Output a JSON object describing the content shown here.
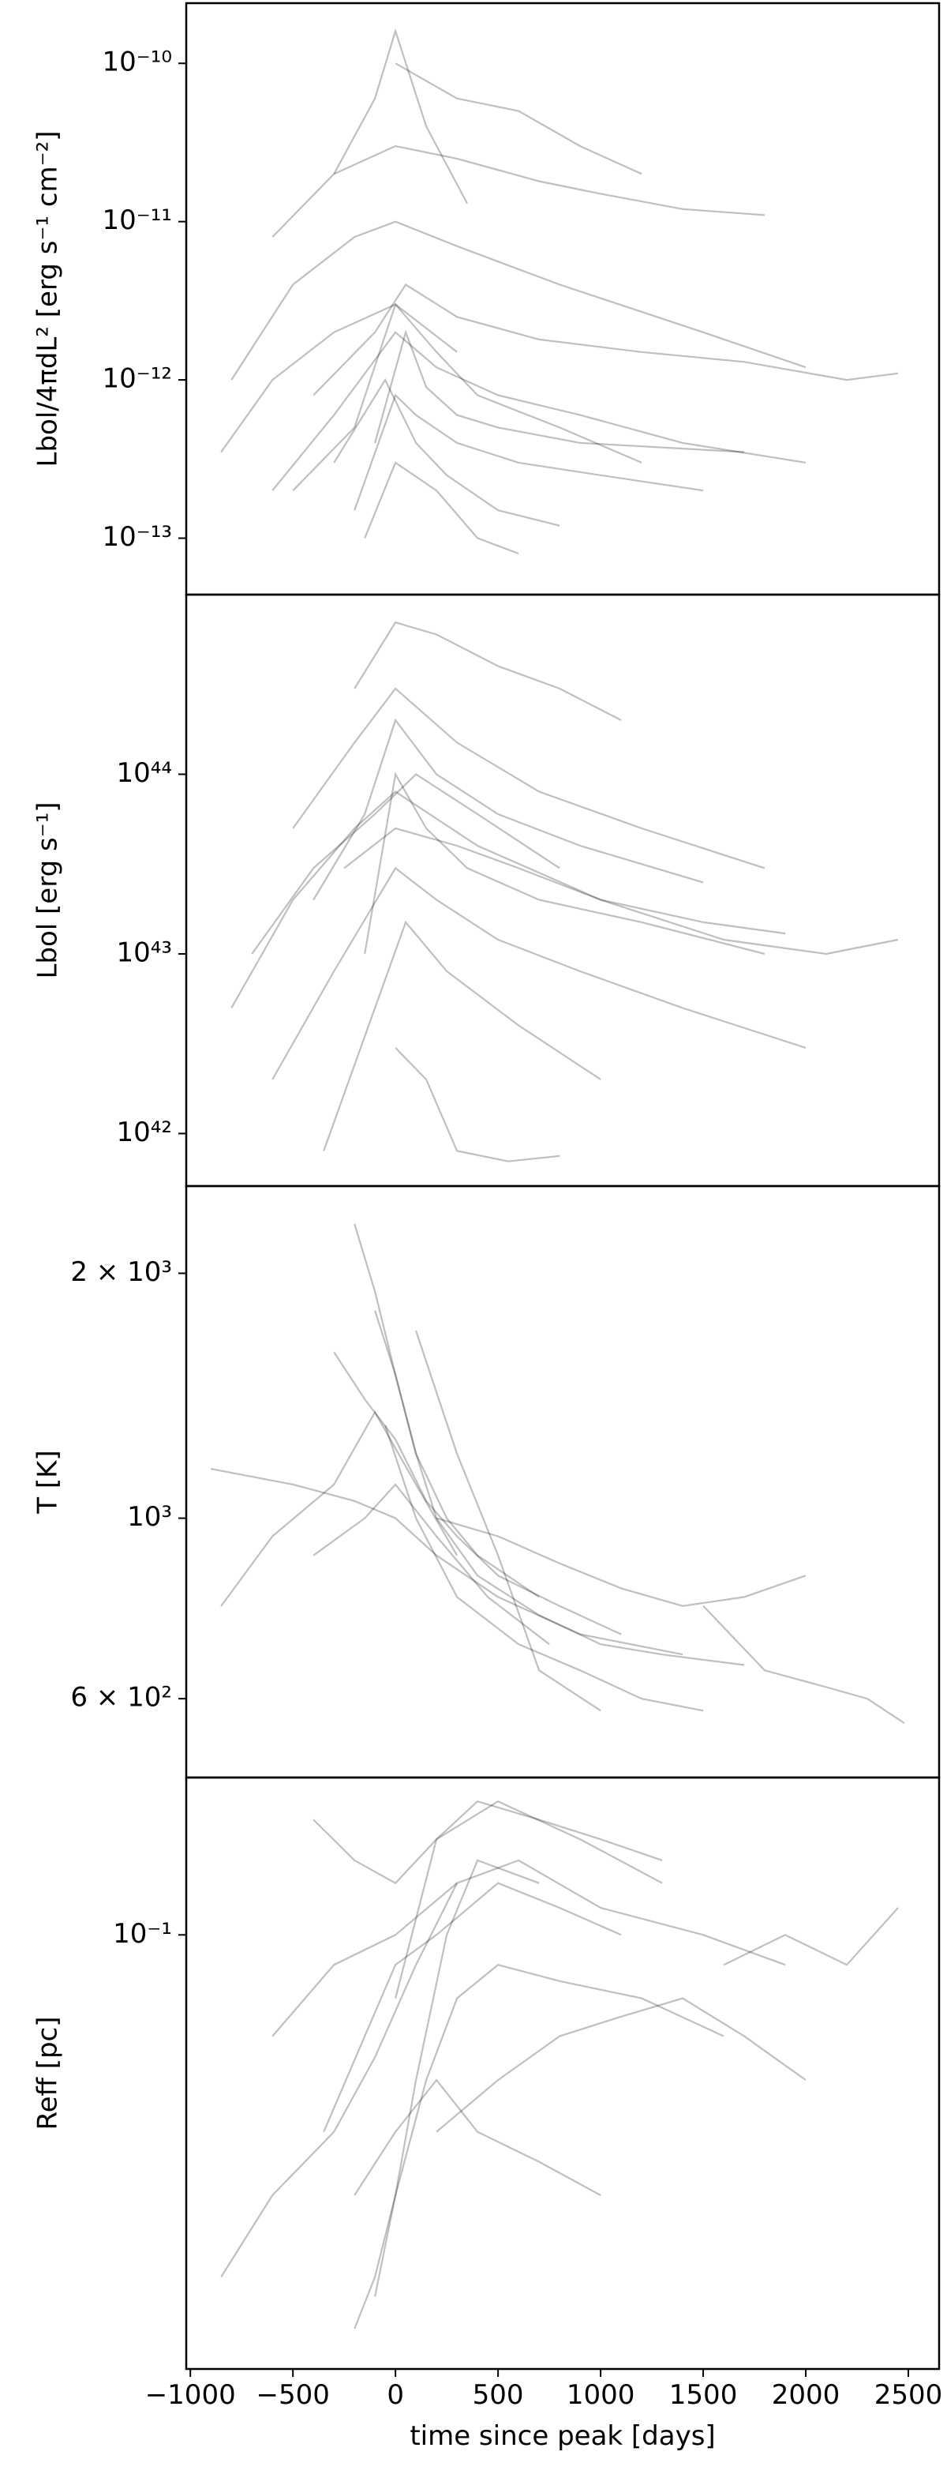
{
  "chart_data": [
    {
      "type": "line",
      "ylabel": "Lbol/4πdL² [erg s⁻¹ cm⁻²]",
      "log_y": true,
      "color": "#000000",
      "opacity": 0.25,
      "xlim": [
        -1020,
        2650
      ],
      "ylim": [
        4.4e-14,
        2.4e-10
      ],
      "yticks": [
        {
          "value": 1e-10,
          "label": "10⁻¹⁰"
        },
        {
          "value": 1e-11,
          "label": "10⁻¹¹"
        },
        {
          "value": 1e-12,
          "label": "10⁻¹²"
        },
        {
          "value": 1e-13,
          "label": "10⁻¹³"
        }
      ],
      "series": [
        {
          "x": [
            -300,
            -100,
            0,
            150,
            350
          ],
          "values": [
            2e-11,
            6e-11,
            1.6e-10,
            4e-11,
            1.3e-11
          ]
        },
        {
          "x": [
            0,
            300,
            600,
            900,
            1200
          ],
          "values": [
            1e-10,
            6e-11,
            5e-11,
            3e-11,
            2e-11
          ]
        },
        {
          "x": [
            -600,
            -300,
            0,
            300,
            700,
            1000,
            1400,
            1800
          ],
          "values": [
            8e-12,
            2e-11,
            3e-11,
            2.5e-11,
            1.8e-11,
            1.5e-11,
            1.2e-11,
            1.1e-11
          ]
        },
        {
          "x": [
            -800,
            -500,
            -200,
            0,
            300,
            800,
            1500,
            2000
          ],
          "values": [
            1e-12,
            4e-12,
            8e-12,
            1e-11,
            7e-12,
            4e-12,
            2e-12,
            1.2e-12
          ]
        },
        {
          "x": [
            -400,
            -100,
            50,
            300,
            700,
            1200,
            1700,
            2200,
            2450
          ],
          "values": [
            8e-13,
            2e-12,
            4e-12,
            2.5e-12,
            1.8e-12,
            1.5e-12,
            1.3e-12,
            1e-12,
            1.1e-12
          ]
        },
        {
          "x": [
            -600,
            -300,
            0,
            200,
            500,
            900,
            1400,
            2000
          ],
          "values": [
            2e-13,
            6e-13,
            2e-12,
            1.2e-12,
            8e-13,
            6e-13,
            4e-13,
            3e-13
          ]
        },
        {
          "x": [
            -200,
            0,
            100,
            300,
            600,
            1000,
            1500
          ],
          "values": [
            1.5e-13,
            8e-13,
            6e-13,
            4e-13,
            3e-13,
            2.5e-13,
            2e-13
          ]
        },
        {
          "x": [
            -300,
            -50,
            100,
            250,
            500,
            800
          ],
          "values": [
            3e-13,
            1e-12,
            4e-13,
            2.5e-13,
            1.5e-13,
            1.2e-13
          ]
        },
        {
          "x": [
            -150,
            0,
            200,
            400,
            600
          ],
          "values": [
            1e-13,
            3e-13,
            2e-13,
            1e-13,
            8e-14
          ]
        },
        {
          "x": [
            -500,
            -200,
            0,
            200,
            400,
            800,
            1200
          ],
          "values": [
            2e-13,
            5e-13,
            3e-12,
            1.5e-12,
            8e-13,
            5e-13,
            3e-13
          ]
        },
        {
          "x": [
            -100,
            50,
            150,
            300,
            500,
            900,
            1700
          ],
          "values": [
            4e-13,
            2e-12,
            9e-13,
            6e-13,
            5e-13,
            4e-13,
            3.5e-13
          ]
        },
        {
          "x": [
            -850,
            -600,
            -300,
            0,
            300
          ],
          "values": [
            3.5e-13,
            1e-12,
            2e-12,
            3e-12,
            1.5e-12
          ]
        }
      ]
    },
    {
      "type": "line",
      "ylabel": "Lbol [erg s⁻¹]",
      "log_y": true,
      "color": "#000000",
      "opacity": 0.25,
      "xlim": [
        -1020,
        2650
      ],
      "ylim": [
        5.1e+41,
        1e+45
      ],
      "yticks": [
        {
          "value": 1e+44,
          "label": "10⁴⁴"
        },
        {
          "value": 1e+43,
          "label": "10⁴³"
        },
        {
          "value": 1e+42,
          "label": "10⁴²"
        }
      ],
      "series": [
        {
          "x": [
            -200,
            0,
            200,
            500,
            800,
            1100
          ],
          "values": [
            3e+44,
            7e+44,
            6e+44,
            4e+44,
            3e+44,
            2e+44
          ]
        },
        {
          "x": [
            -500,
            -200,
            0,
            300,
            700,
            1200,
            1800
          ],
          "values": [
            5e+43,
            1.5e+44,
            3e+44,
            1.5e+44,
            8e+43,
            5e+43,
            3e+43
          ]
        },
        {
          "x": [
            -800,
            -500,
            -200,
            0,
            400,
            1000,
            1600,
            2100,
            2450
          ],
          "values": [
            5e+42,
            2e+43,
            5e+43,
            8e+43,
            4e+43,
            2e+43,
            1.2e+43,
            1e+43,
            1.2e+43
          ]
        },
        {
          "x": [
            -600,
            -300,
            0,
            200,
            500,
            900,
            1400,
            2000
          ],
          "values": [
            2e+42,
            8e+42,
            3e+43,
            2e+43,
            1.2e+43,
            8e+42,
            5e+42,
            3e+42
          ]
        },
        {
          "x": [
            -350,
            -100,
            50,
            250,
            600,
            1000
          ],
          "values": [
            8e+41,
            5e+42,
            1.5e+43,
            8e+42,
            4e+42,
            2e+42
          ]
        },
        {
          "x": [
            -150,
            0,
            150,
            350,
            700,
            1200,
            1800
          ],
          "values": [
            1e+43,
            1e+44,
            5e+43,
            3e+43,
            2e+43,
            1.5e+43,
            1e+43
          ]
        },
        {
          "x": [
            -400,
            -150,
            0,
            200,
            500,
            900,
            1500
          ],
          "values": [
            2e+43,
            6e+43,
            2e+44,
            1e+44,
            6e+43,
            4e+43,
            2.5e+43
          ]
        },
        {
          "x": [
            0,
            150,
            300,
            550,
            800
          ],
          "values": [
            3e+42,
            2e+42,
            8e+41,
            7e+41,
            7.5e+41
          ]
        },
        {
          "x": [
            -250,
            0,
            300,
            600,
            1000,
            1500,
            1900
          ],
          "values": [
            3e+43,
            5e+43,
            4e+43,
            3e+43,
            2e+43,
            1.5e+43,
            1.3e+43
          ]
        },
        {
          "x": [
            -700,
            -400,
            -100,
            100,
            400,
            800
          ],
          "values": [
            1e+43,
            3e+43,
            6e+43,
            1e+44,
            6e+43,
            3e+43
          ]
        }
      ]
    },
    {
      "type": "line",
      "ylabel": "T [K]",
      "log_y": true,
      "color": "#000000",
      "opacity": 0.25,
      "xlim": [
        -1020,
        2650
      ],
      "ylim": [
        480,
        2560
      ],
      "yticks": [
        {
          "value": 2000,
          "label": "2 × 10³"
        },
        {
          "value": 1000,
          "label": "10³"
        },
        {
          "value": 600,
          "label": "6 × 10²"
        }
      ],
      "series": [
        {
          "x": [
            -850,
            -600,
            -300,
            -100,
            100,
            300
          ],
          "values": [
            780,
            950,
            1100,
            1350,
            1100,
            900
          ]
        },
        {
          "x": [
            -200,
            -100,
            0,
            100,
            250,
            400,
            700
          ],
          "values": [
            2300,
            1900,
            1500,
            1200,
            1000,
            900,
            800
          ]
        },
        {
          "x": [
            -300,
            -150,
            0,
            150,
            300,
            500,
            800,
            1100
          ],
          "values": [
            1600,
            1400,
            1250,
            1050,
            950,
            850,
            780,
            720
          ]
        },
        {
          "x": [
            -900,
            -500,
            -200,
            0,
            200,
            500,
            900,
            1400
          ],
          "values": [
            1150,
            1100,
            1050,
            1000,
            900,
            800,
            720,
            680
          ]
        },
        {
          "x": [
            -100,
            0,
            100,
            200,
            400,
            700,
            1000,
            1300,
            1700
          ],
          "values": [
            1800,
            1500,
            1200,
            1000,
            850,
            760,
            700,
            680,
            660
          ]
        },
        {
          "x": [
            1500,
            1800,
            2100,
            2300,
            2480
          ],
          "values": [
            780,
            650,
            620,
            600,
            560
          ]
        },
        {
          "x": [
            -400,
            -150,
            0,
            200,
            450,
            750
          ],
          "values": [
            900,
            1000,
            1100,
            950,
            800,
            700
          ]
        },
        {
          "x": [
            200,
            500,
            800,
            1100,
            1400,
            1700,
            2000
          ],
          "values": [
            1000,
            950,
            880,
            820,
            780,
            800,
            850
          ]
        },
        {
          "x": [
            -50,
            100,
            300,
            600,
            900,
            1200,
            1500
          ],
          "values": [
            1300,
            1000,
            800,
            700,
            650,
            600,
            580
          ]
        },
        {
          "x": [
            100,
            300,
            500,
            700,
            1000
          ],
          "values": [
            1700,
            1200,
            900,
            650,
            580
          ]
        }
      ]
    },
    {
      "type": "line",
      "ylabel": "Reff [pc]",
      "log_y": true,
      "color": "#000000",
      "opacity": 0.25,
      "xlim": [
        -1020,
        2650
      ],
      "ylim": [
        0.0217,
        0.174
      ],
      "yticks": [
        {
          "value": 0.1,
          "label": "10⁻¹"
        }
      ],
      "xlabel": "time since peak [days]",
      "xticks": [
        {
          "value": -1000,
          "label": "−1000"
        },
        {
          "value": -500,
          "label": "−500"
        },
        0,
        500,
        1000,
        1500,
        2000,
        2500
      ],
      "series": [
        {
          "x": [
            -850,
            -600,
            -300,
            -100,
            100,
            300
          ],
          "values": [
            0.03,
            0.04,
            0.05,
            0.065,
            0.09,
            0.12
          ]
        },
        {
          "x": [
            -200,
            -100,
            0,
            100,
            250,
            400,
            700
          ],
          "values": [
            0.025,
            0.03,
            0.04,
            0.06,
            0.1,
            0.13,
            0.12
          ]
        },
        {
          "x": [
            -350,
            -150,
            0,
            200,
            500,
            800,
            1100
          ],
          "values": [
            0.05,
            0.07,
            0.09,
            0.1,
            0.12,
            0.11,
            0.1
          ]
        },
        {
          "x": [
            -600,
            -300,
            0,
            300,
            600,
            1000,
            1500,
            1900
          ],
          "values": [
            0.07,
            0.09,
            0.1,
            0.12,
            0.13,
            0.11,
            0.1,
            0.09
          ]
        },
        {
          "x": [
            -100,
            0,
            150,
            300,
            500,
            800,
            1200,
            1600
          ],
          "values": [
            0.028,
            0.04,
            0.06,
            0.08,
            0.09,
            0.085,
            0.08,
            0.07
          ]
        },
        {
          "x": [
            1600,
            1900,
            2200,
            2450
          ],
          "values": [
            0.09,
            0.1,
            0.09,
            0.11
          ]
        },
        {
          "x": [
            -400,
            -200,
            0,
            200,
            500,
            900,
            1300
          ],
          "values": [
            0.15,
            0.13,
            0.12,
            0.14,
            0.16,
            0.14,
            0.12
          ]
        },
        {
          "x": [
            200,
            500,
            800,
            1100,
            1400,
            1700,
            2000
          ],
          "values": [
            0.05,
            0.06,
            0.07,
            0.075,
            0.08,
            0.07,
            0.06
          ]
        },
        {
          "x": [
            -200,
            0,
            200,
            400,
            700,
            1000
          ],
          "values": [
            0.04,
            0.05,
            0.06,
            0.05,
            0.045,
            0.04
          ]
        },
        {
          "x": [
            0,
            200,
            400,
            700,
            1000,
            1300
          ],
          "values": [
            0.08,
            0.14,
            0.16,
            0.15,
            0.14,
            0.13
          ]
        }
      ]
    }
  ]
}
